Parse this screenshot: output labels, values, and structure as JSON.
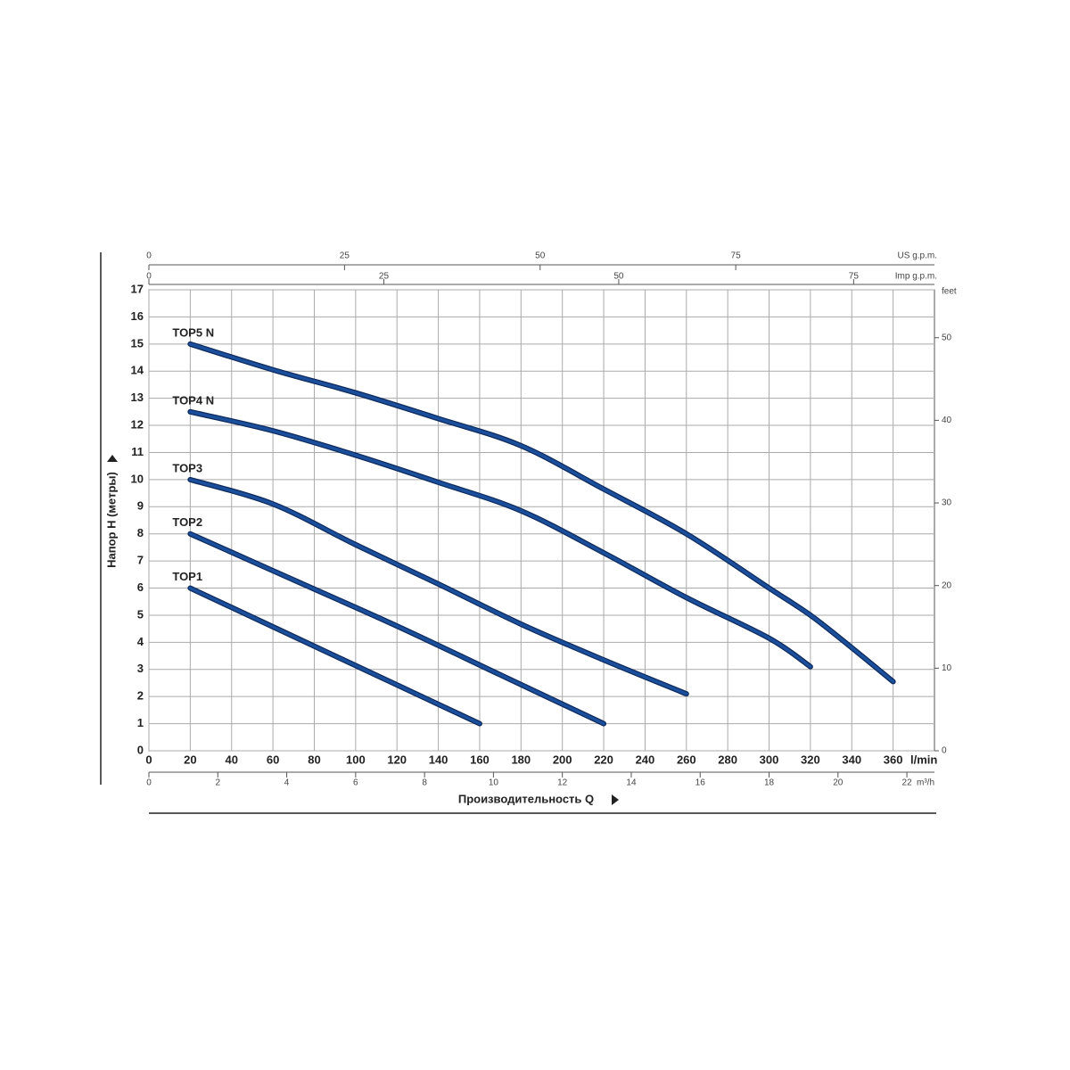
{
  "chart_data": {
    "type": "line",
    "xlabel": "Производительность Q",
    "ylabel": "Напор H (метры)",
    "xunit": "l/min",
    "xlim": [
      0,
      380
    ],
    "xticks": [
      0,
      20,
      40,
      60,
      80,
      100,
      120,
      140,
      160,
      180,
      200,
      220,
      240,
      260,
      280,
      300,
      320,
      340,
      360
    ],
    "ylim": [
      0,
      17
    ],
    "yticks": [
      0,
      1,
      2,
      3,
      4,
      5,
      6,
      7,
      8,
      9,
      10,
      11,
      12,
      13,
      14,
      15,
      16,
      17
    ],
    "x2label": "US g.p.m.",
    "x2lim": [
      0,
      100.4
    ],
    "x2ticks": [
      0,
      25,
      50,
      75
    ],
    "x3label": "Imp g.p.m.",
    "x3lim": [
      0,
      83.6
    ],
    "x3ticks": [
      0,
      25,
      50,
      75
    ],
    "x4label": "m³/h",
    "x4lim": [
      0,
      22.8
    ],
    "x4ticks": [
      0,
      2,
      4,
      6,
      8,
      10,
      12,
      14,
      16,
      18,
      20,
      22
    ],
    "y2label": "feet",
    "y2lim": [
      0,
      55.8
    ],
    "y2ticks": [
      0,
      10,
      20,
      30,
      40,
      50
    ],
    "grid": true,
    "series": [
      {
        "name": "TOP1",
        "color": "#1b4f9c",
        "x": [
          20,
          90,
          160
        ],
        "values": [
          6,
          3.5,
          1
        ]
      },
      {
        "name": "TOP2",
        "color": "#1b4f9c",
        "x": [
          20,
          70,
          120,
          170,
          220
        ],
        "values": [
          8,
          6.3,
          4.6,
          2.8,
          1
        ]
      },
      {
        "name": "TOP3",
        "color": "#1b4f9c",
        "x": [
          20,
          60,
          100,
          140,
          180,
          220,
          260
        ],
        "values": [
          10,
          9.1,
          7.6,
          6.15,
          4.67,
          3.35,
          2.1
        ]
      },
      {
        "name": "TOP4 N",
        "color": "#1b4f9c",
        "x": [
          20,
          60,
          100,
          140,
          180,
          220,
          260,
          300,
          320
        ],
        "values": [
          12.5,
          11.8,
          10.9,
          9.9,
          8.85,
          7.3,
          5.65,
          4.15,
          3.1
        ]
      },
      {
        "name": "TOP5 N",
        "color": "#1b4f9c",
        "x": [
          20,
          60,
          100,
          140,
          180,
          220,
          260,
          300,
          320,
          340,
          360
        ],
        "values": [
          15,
          14.05,
          13.2,
          12.25,
          11.25,
          9.65,
          8.0,
          6.0,
          5.0,
          3.8,
          2.55
        ]
      }
    ]
  }
}
